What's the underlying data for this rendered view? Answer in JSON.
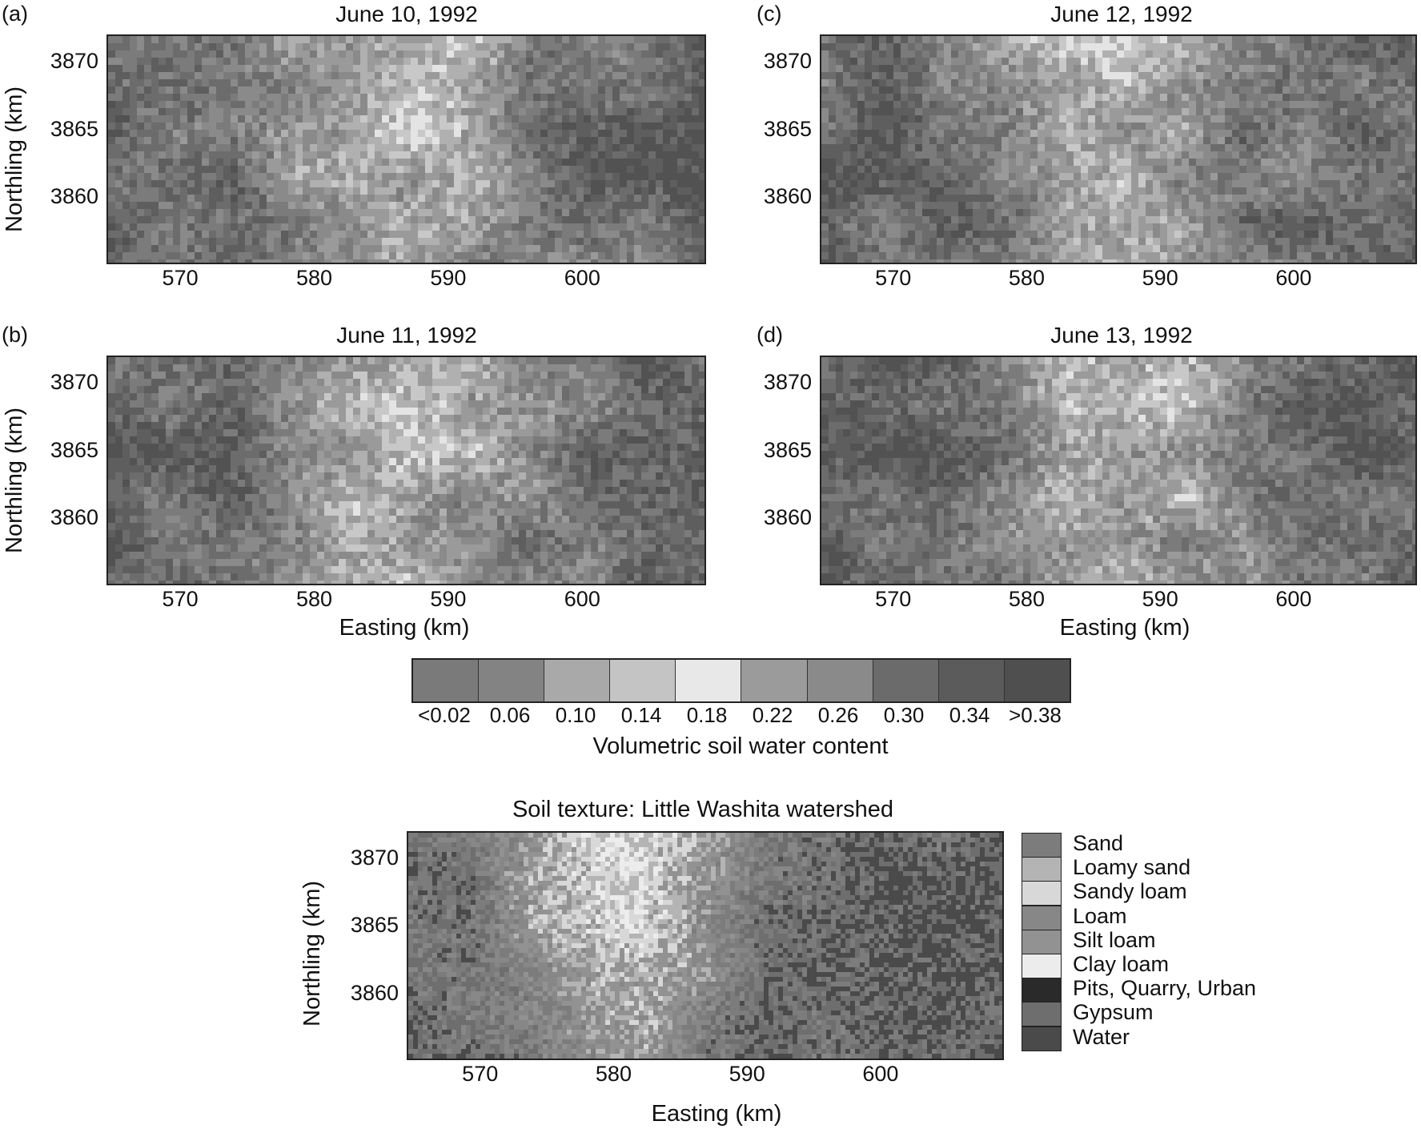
{
  "panels": [
    {
      "letter": "(a)",
      "title": "June 10, 1992",
      "seed": 11
    },
    {
      "letter": "(b)",
      "title": "June 11, 1992",
      "seed": 23
    },
    {
      "letter": "(c)",
      "title": "June 12, 1992",
      "seed": 37
    },
    {
      "letter": "(d)",
      "title": "June 13, 1992",
      "seed": 51
    }
  ],
  "axes": {
    "xticks": [
      "570",
      "580",
      "590",
      "600"
    ],
    "yticks": [
      "3870",
      "3865",
      "3860"
    ],
    "xlabel": "Easting (km)",
    "ylabel": "Northling (km)",
    "xlim": [
      564.5,
      609
    ],
    "ylim": [
      3855.3,
      3872
    ]
  },
  "colorbar": {
    "title": "Volumetric soil water content",
    "labels": [
      "<0.02",
      "0.06",
      "0.10",
      "0.14",
      "0.18",
      "0.22",
      "0.26",
      "0.30",
      "0.34",
      ">0.38"
    ],
    "colors": [
      "#7a7a7a",
      "#838383",
      "#a9a9a9",
      "#c4c4c4",
      "#e8e8e8",
      "#9b9b9b",
      "#8a8a8a",
      "#6b6b6b",
      "#5b5b5b",
      "#4f4f4f"
    ]
  },
  "soil": {
    "title": "Soil texture: Little Washita watershed",
    "legend": [
      {
        "label": "Sand",
        "color": "#7c7c7c"
      },
      {
        "label": "Loamy sand",
        "color": "#b4b4b4"
      },
      {
        "label": "Sandy loam",
        "color": "#d8d8d8"
      },
      {
        "label": "Loam",
        "color": "#878787"
      },
      {
        "label": "Silt loam",
        "color": "#929292"
      },
      {
        "label": "Clay loam",
        "color": "#ececec"
      },
      {
        "label": "Pits, Quarry, Urban",
        "color": "#2a2a2a"
      },
      {
        "label": "Gypsum",
        "color": "#6e6e6e"
      },
      {
        "label": "Water",
        "color": "#4a4a4a"
      }
    ]
  }
}
